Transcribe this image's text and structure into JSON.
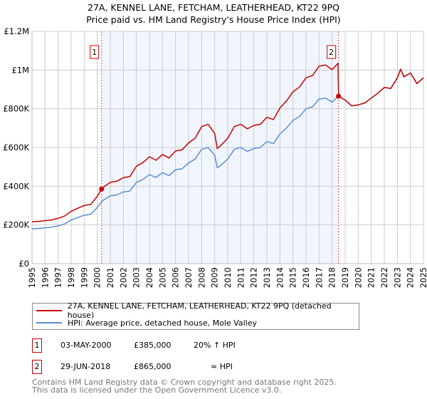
{
  "title": "27A, KENNEL LANE, FETCHAM, LEATHERHEAD, KT22 9PQ",
  "subtitle": "Price paid vs. HM Land Registry's House Price Index (HPI)",
  "chart_data": {
    "type": "line",
    "title": "27A, KENNEL LANE, FETCHAM, LEATHERHEAD, KT22 9PQ — Price paid vs. HM Land Registry's House Price Index (HPI)",
    "xlim": [
      1995,
      2025
    ],
    "ylim": [
      0,
      1200000
    ],
    "x_ticks": [
      "1995",
      "1996",
      "1997",
      "1998",
      "1999",
      "2000",
      "2001",
      "2002",
      "2003",
      "2004",
      "2005",
      "2006",
      "2007",
      "2008",
      "2009",
      "2010",
      "2011",
      "2012",
      "2013",
      "2014",
      "2015",
      "2016",
      "2017",
      "2018",
      "2019",
      "2020",
      "2021",
      "2022",
      "2023",
      "2024",
      "2025"
    ],
    "y_ticks": [
      {
        "v": 0,
        "label": "£0"
      },
      {
        "v": 200000,
        "label": "£200K"
      },
      {
        "v": 400000,
        "label": "£400K"
      },
      {
        "v": 600000,
        "label": "£600K"
      },
      {
        "v": 800000,
        "label": "£800K"
      },
      {
        "v": 1000000,
        "label": "£1M"
      },
      {
        "v": 1200000,
        "label": "£1.2M"
      }
    ],
    "grid": true,
    "shaded_range": [
      2000.33,
      2018.49
    ],
    "series": [
      {
        "name": "27A, KENNEL LANE, FETCHAM, LEATHERHEAD, KT22 9PQ (detached house)",
        "color": "#cc0000",
        "x": [
          1995,
          1995.5,
          1996,
          1996.5,
          1997,
          1997.5,
          1998,
          1998.5,
          1999,
          1999.5,
          2000,
          2000.33,
          2000.5,
          2001,
          2001.5,
          2002,
          2002.5,
          2003,
          2003.5,
          2004,
          2004.5,
          2005,
          2005.5,
          2006,
          2006.5,
          2007,
          2007.5,
          2008,
          2008.5,
          2009,
          2009.2,
          2009.5,
          2010,
          2010.5,
          2011,
          2011.5,
          2012,
          2012.5,
          2013,
          2013.5,
          2014,
          2014.5,
          2015,
          2015.5,
          2016,
          2016.5,
          2017,
          2017.5,
          2018,
          2018.45,
          2018.5,
          2019,
          2019.5,
          2020,
          2020.5,
          2021,
          2021.5,
          2022,
          2022.5,
          2023,
          2023.25,
          2023.5,
          2024,
          2024.5,
          2025
        ],
        "y": [
          216,
          218,
          222,
          226,
          234,
          246,
          270,
          286,
          300,
          306,
          348,
          385,
          396,
          420,
          426,
          444,
          450,
          504,
          522,
          552,
          534,
          564,
          546,
          582,
          588,
          624,
          648,
          708,
          720,
          672,
          594,
          612,
          648,
          708,
          720,
          696,
          714,
          720,
          756,
          744,
          804,
          840,
          888,
          912,
          960,
          972,
          1020,
          1026,
          1002,
          1035,
          865,
          845,
          815,
          820,
          830,
          855,
          880,
          910,
          905,
          960,
          1005,
          965,
          985,
          930,
          960
        ]
      },
      {
        "name": "HPI: Average price, detached house, Mole Valley",
        "color": "#5b8fd4",
        "x": [
          1995,
          1995.5,
          1996,
          1996.5,
          1997,
          1997.5,
          1998,
          1998.5,
          1999,
          1999.5,
          2000,
          2000.33,
          2000.5,
          2001,
          2001.5,
          2002,
          2002.5,
          2003,
          2003.5,
          2004,
          2004.5,
          2005,
          2005.5,
          2006,
          2006.5,
          2007,
          2007.5,
          2008,
          2008.5,
          2009,
          2009.2,
          2009.5,
          2010,
          2010.5,
          2011,
          2011.5,
          2012,
          2012.5,
          2013,
          2013.5,
          2014,
          2014.5,
          2015,
          2015.5,
          2016,
          2016.5,
          2017,
          2017.5,
          2018,
          2018.5,
          2019,
          2019.5,
          2020,
          2020.5,
          2021,
          2021.5,
          2022,
          2022.5,
          2023,
          2023.25,
          2023.5,
          2024,
          2024.5,
          2025
        ],
        "y": [
          180,
          182,
          185,
          188,
          195,
          205,
          225,
          238,
          250,
          255,
          290,
          320,
          330,
          350,
          355,
          370,
          375,
          420,
          435,
          460,
          445,
          470,
          455,
          485,
          490,
          520,
          540,
          590,
          600,
          560,
          495,
          510,
          540,
          590,
          600,
          580,
          595,
          600,
          630,
          620,
          670,
          700,
          740,
          760,
          800,
          810,
          850,
          855,
          835,
          865,
          845,
          815,
          820,
          830,
          855,
          880,
          910,
          905,
          960,
          1005,
          965,
          985,
          930,
          960
        ]
      }
    ],
    "y_units": "thousands GBP",
    "sales": [
      {
        "label": "1",
        "x": 2000.33,
        "y": 385
      },
      {
        "label": "2",
        "x": 2018.49,
        "y": 865
      }
    ],
    "legend_placement": "below"
  },
  "legend": [
    "27A, KENNEL LANE, FETCHAM, LEATHERHEAD, KT22 9PQ (detached house)",
    "HPI: Average price, detached house, Mole Valley"
  ],
  "transactions": [
    {
      "num": "1",
      "date": "03-MAY-2000",
      "price": "£385,000",
      "hpi": "20% ↑ HPI"
    },
    {
      "num": "2",
      "date": "29-JUN-2018",
      "price": "£865,000",
      "hpi": "≈ HPI"
    }
  ],
  "footer": [
    "Contains HM Land Registry data © Crown copyright and database right 2025.",
    "This data is licensed under the Open Government Licence v3.0."
  ]
}
